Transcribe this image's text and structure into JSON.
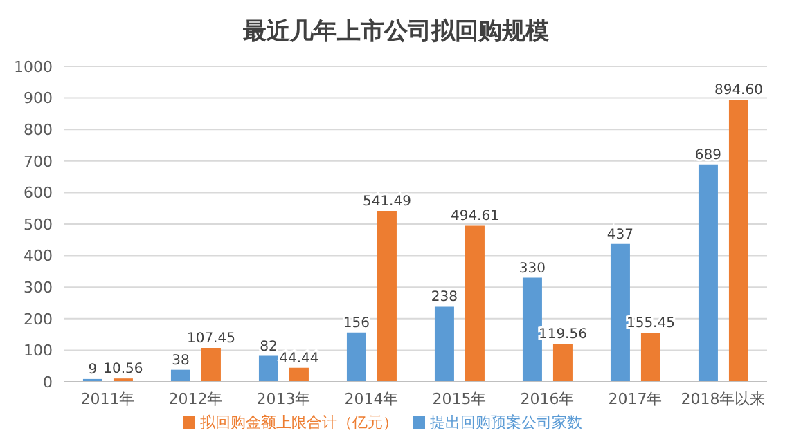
{
  "chart_data": {
    "type": "bar",
    "title": "最近几年上市公司拟回购规模",
    "categories": [
      "2011年",
      "2012年",
      "2013年",
      "2014年",
      "2015年",
      "2016年",
      "2017年",
      "2018年以来"
    ],
    "series": [
      {
        "name": "提出回购预案公司家数",
        "color": "#5b9bd5",
        "values": [
          9,
          38,
          82,
          156,
          238,
          330,
          437,
          689
        ],
        "value_labels": [
          "9",
          "38",
          "82",
          "156",
          "238",
          "330",
          "437",
          "689"
        ]
      },
      {
        "name": "拟回购金额上限合计（亿元）",
        "color": "#ed7d31",
        "values": [
          10.56,
          107.45,
          44.44,
          541.49,
          494.61,
          119.56,
          155.45,
          894.6
        ],
        "value_labels": [
          "10.56",
          "107.45",
          "44.44",
          "541.49",
          "494.61",
          "119.56",
          "155.45",
          "894.60"
        ]
      }
    ],
    "ylim": [
      0,
      1000
    ],
    "yticks": [
      0,
      100,
      200,
      300,
      400,
      500,
      600,
      700,
      800,
      900,
      1000
    ],
    "grid": "y",
    "legend": "bottom"
  }
}
